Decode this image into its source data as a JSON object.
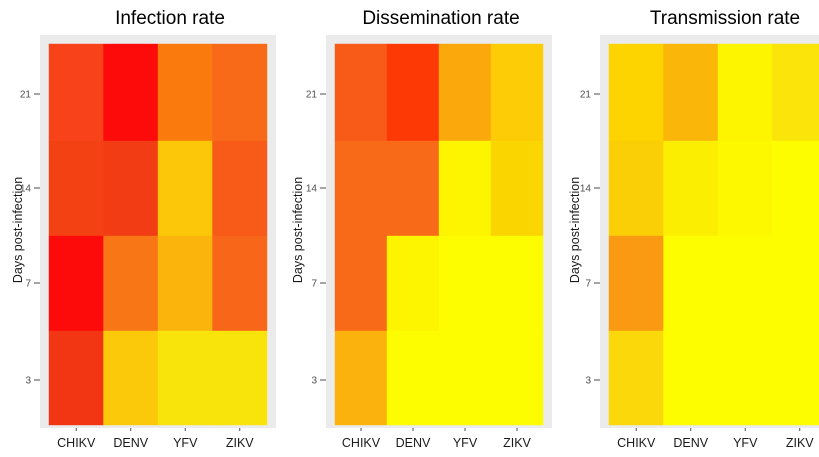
{
  "chart_data": [
    {
      "type": "heatmap",
      "title": "Infection rate",
      "xlabel": "",
      "ylabel": "Days post-infection",
      "x_categories": [
        "CHIKV",
        "DENV",
        "YFV",
        "ZIKV"
      ],
      "y_categories": [
        "3",
        "7",
        "14",
        "21"
      ],
      "cells": [
        [
          "#f23513",
          "#fbc80a",
          "#f8e40a",
          "#f8e40a"
        ],
        [
          "#fd0b0b",
          "#f87616",
          "#fbb40c",
          "#f8661a"
        ],
        [
          "#f44113",
          "#f23d14",
          "#fbc708",
          "#f85a18"
        ],
        [
          "#f8421a",
          "#fd0b0b",
          "#fa7a0e",
          "#f86a18"
        ]
      ]
    },
    {
      "type": "heatmap",
      "title": "Dissemination rate",
      "xlabel": "",
      "ylabel": "Days post-infection",
      "x_categories": [
        "CHIKV",
        "DENV",
        "YFV",
        "ZIKV"
      ],
      "y_categories": [
        "3",
        "7",
        "14",
        "21"
      ],
      "cells": [
        [
          "#fbb20c",
          "#fdfd00",
          "#fdfd00",
          "#fdfd00"
        ],
        [
          "#f86a18",
          "#fdf400",
          "#fdfd00",
          "#fdfd00"
        ],
        [
          "#f86a18",
          "#f86a18",
          "#fdf500",
          "#fad500"
        ],
        [
          "#f85a18",
          "#fd3a06",
          "#fba80c",
          "#fdcc06"
        ]
      ]
    },
    {
      "type": "heatmap",
      "title": "Transmission rate",
      "xlabel": "",
      "ylabel": "Days post-infection",
      "x_categories": [
        "CHIKV",
        "DENV",
        "YFV",
        "ZIKV"
      ],
      "y_categories": [
        "3",
        "7",
        "14",
        "21"
      ],
      "cells": [
        [
          "#fad80a",
          "#fdfd00",
          "#fdfd00",
          "#fdfd00"
        ],
        [
          "#fa9a12",
          "#fdfd00",
          "#fdfd00",
          "#fdfd00"
        ],
        [
          "#fbcf06",
          "#fbee00",
          "#fdf800",
          "#fdfd00"
        ],
        [
          "#fdd400",
          "#fbb60a",
          "#fdf400",
          "#fae40a"
        ]
      ]
    }
  ]
}
